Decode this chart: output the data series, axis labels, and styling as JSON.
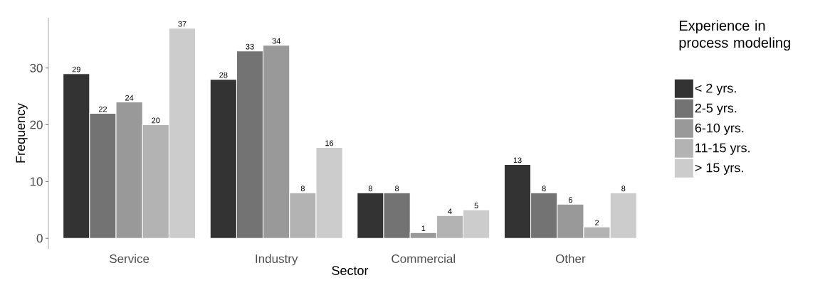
{
  "chart_data": {
    "type": "bar",
    "xlabel": "Sector",
    "ylabel": "Frequency",
    "legend_title": "Experience in process modeling",
    "categories": [
      "Service",
      "Industry",
      "Commercial",
      "Other"
    ],
    "series": [
      {
        "name": "< 2 yrs.",
        "color": "#333333",
        "values": [
          29,
          28,
          8,
          13
        ]
      },
      {
        "name": "2-5 yrs.",
        "color": "#737373",
        "values": [
          22,
          33,
          8,
          8
        ]
      },
      {
        "name": "6-10 yrs.",
        "color": "#999999",
        "values": [
          24,
          34,
          1,
          6
        ]
      },
      {
        "name": "11-15 yrs.",
        "color": "#b3b3b3",
        "values": [
          20,
          8,
          4,
          2
        ]
      },
      {
        "name": "> 15 yrs.",
        "color": "#cccccc",
        "values": [
          37,
          16,
          5,
          8
        ]
      }
    ],
    "ylim": [
      -1.85,
      38.85
    ],
    "yticks": [
      0,
      10,
      20,
      30
    ],
    "data_labels": true,
    "legend": "right"
  }
}
